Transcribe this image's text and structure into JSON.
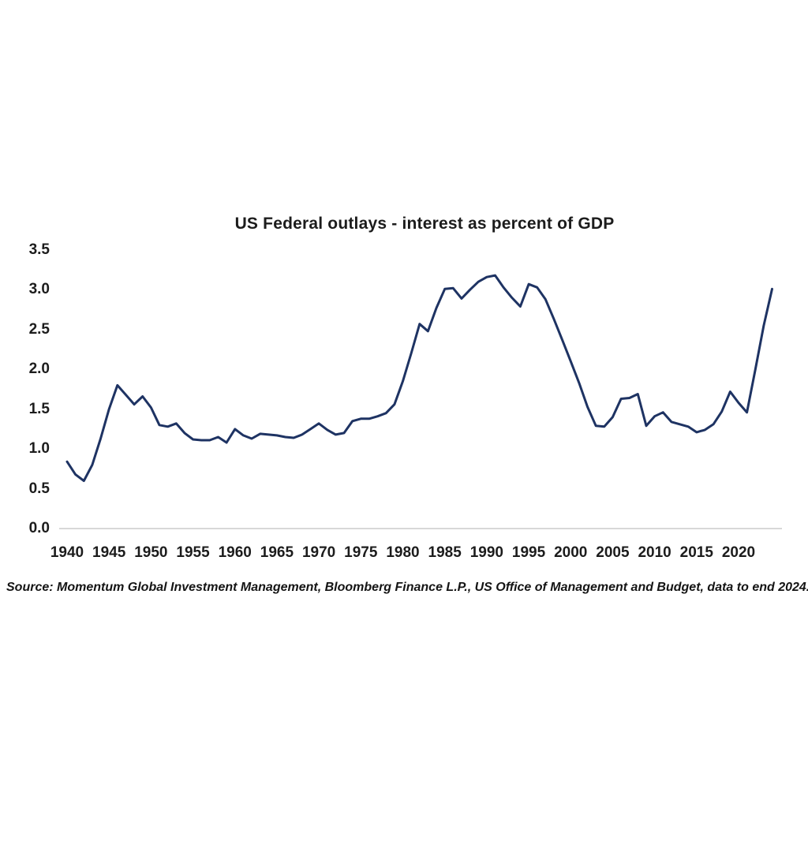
{
  "page": {
    "background": "#ffffff"
  },
  "chart": {
    "title": "US Federal outlays - interest as percent of GDP",
    "source": "Source: Momentum Global Investment Management, Bloomberg Finance L.P., US Office of Management and Budget, data to end 2024.",
    "colors": {
      "line": "#1e3363",
      "axis_line": "#d8d8d8",
      "text": "#1c1c1c"
    }
  },
  "chart_data": {
    "type": "line",
    "title": "US Federal outlays - interest as percent of GDP",
    "xlabel": "",
    "ylabel": "",
    "xlim": [
      1940,
      2024
    ],
    "ylim": [
      0.0,
      3.5
    ],
    "grid": false,
    "legend": "none",
    "x_ticks": [
      1940,
      1945,
      1950,
      1955,
      1960,
      1965,
      1970,
      1975,
      1980,
      1985,
      1990,
      1995,
      2000,
      2005,
      2010,
      2015,
      2020
    ],
    "y_ticks": [
      0.0,
      0.5,
      1.0,
      1.5,
      2.0,
      2.5,
      3.0,
      3.5
    ],
    "x": [
      1940,
      1941,
      1942,
      1943,
      1944,
      1945,
      1946,
      1947,
      1948,
      1949,
      1950,
      1951,
      1952,
      1953,
      1954,
      1955,
      1956,
      1957,
      1958,
      1959,
      1960,
      1961,
      1962,
      1963,
      1964,
      1965,
      1966,
      1967,
      1968,
      1969,
      1970,
      1971,
      1972,
      1973,
      1974,
      1975,
      1976,
      1977,
      1978,
      1979,
      1980,
      1981,
      1982,
      1983,
      1984,
      1985,
      1986,
      1987,
      1988,
      1989,
      1990,
      1991,
      1992,
      1993,
      1994,
      1995,
      1996,
      1997,
      1998,
      1999,
      2000,
      2001,
      2002,
      2003,
      2004,
      2005,
      2006,
      2007,
      2008,
      2009,
      2010,
      2011,
      2012,
      2013,
      2014,
      2015,
      2016,
      2017,
      2018,
      2019,
      2020,
      2021,
      2022,
      2023,
      2024
    ],
    "values": [
      0.84,
      0.68,
      0.6,
      0.8,
      1.13,
      1.5,
      1.8,
      1.68,
      1.56,
      1.66,
      1.52,
      1.3,
      1.28,
      1.32,
      1.2,
      1.12,
      1.11,
      1.11,
      1.15,
      1.08,
      1.25,
      1.17,
      1.13,
      1.19,
      1.18,
      1.17,
      1.15,
      1.14,
      1.18,
      1.25,
      1.32,
      1.24,
      1.18,
      1.2,
      1.35,
      1.38,
      1.38,
      1.41,
      1.45,
      1.56,
      1.85,
      2.2,
      2.57,
      2.48,
      2.77,
      3.01,
      3.02,
      2.89,
      3.0,
      3.1,
      3.16,
      3.18,
      3.03,
      2.9,
      2.79,
      3.07,
      3.03,
      2.88,
      2.63,
      2.37,
      2.1,
      1.83,
      1.53,
      1.29,
      1.28,
      1.4,
      1.63,
      1.64,
      1.69,
      1.29,
      1.41,
      1.46,
      1.34,
      1.31,
      1.28,
      1.21,
      1.24,
      1.31,
      1.47,
      1.72,
      1.58,
      1.46,
      2.0,
      2.55,
      3.01
    ],
    "source": "Source: Momentum Global Investment Management, Bloomberg Finance L.P., US Office of Management and Budget, data to end 2024."
  }
}
